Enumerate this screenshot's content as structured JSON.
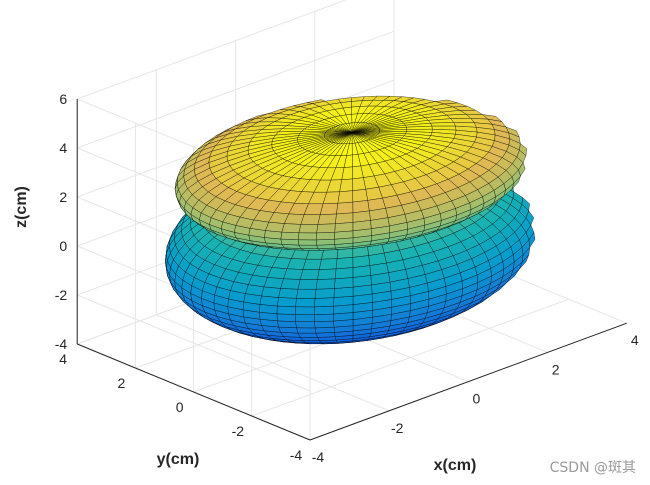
{
  "chart_data": {
    "type": "surface3d",
    "title": "",
    "xlabel": "x(cm)",
    "ylabel": "y(cm)",
    "zlabel": "z(cm)",
    "xlim": [
      -4,
      4
    ],
    "ylim": [
      -4,
      4
    ],
    "zlim": [
      -4,
      6
    ],
    "xticks": [
      "-4",
      "-2",
      "0",
      "2",
      "4"
    ],
    "yticks": [
      "-4",
      "-2",
      "0",
      "2",
      "4"
    ],
    "zticks": [
      "-4",
      "-2",
      "0",
      "2",
      "4",
      "6"
    ],
    "grid": true,
    "colormap": "parula",
    "edge_color": "#000000",
    "surfaces": [
      {
        "name": "lower",
        "center": [
          0,
          0,
          -0.3
        ],
        "radius_xy": 3.8,
        "radius_z": 2.9,
        "mesh": [
          60,
          30
        ]
      },
      {
        "name": "upper",
        "center": [
          0,
          0,
          2.6
        ],
        "radius_xy": 3.6,
        "radius_z": 1.6,
        "mesh": [
          60,
          20
        ]
      }
    ]
  },
  "watermark": "CSDN @斑其"
}
